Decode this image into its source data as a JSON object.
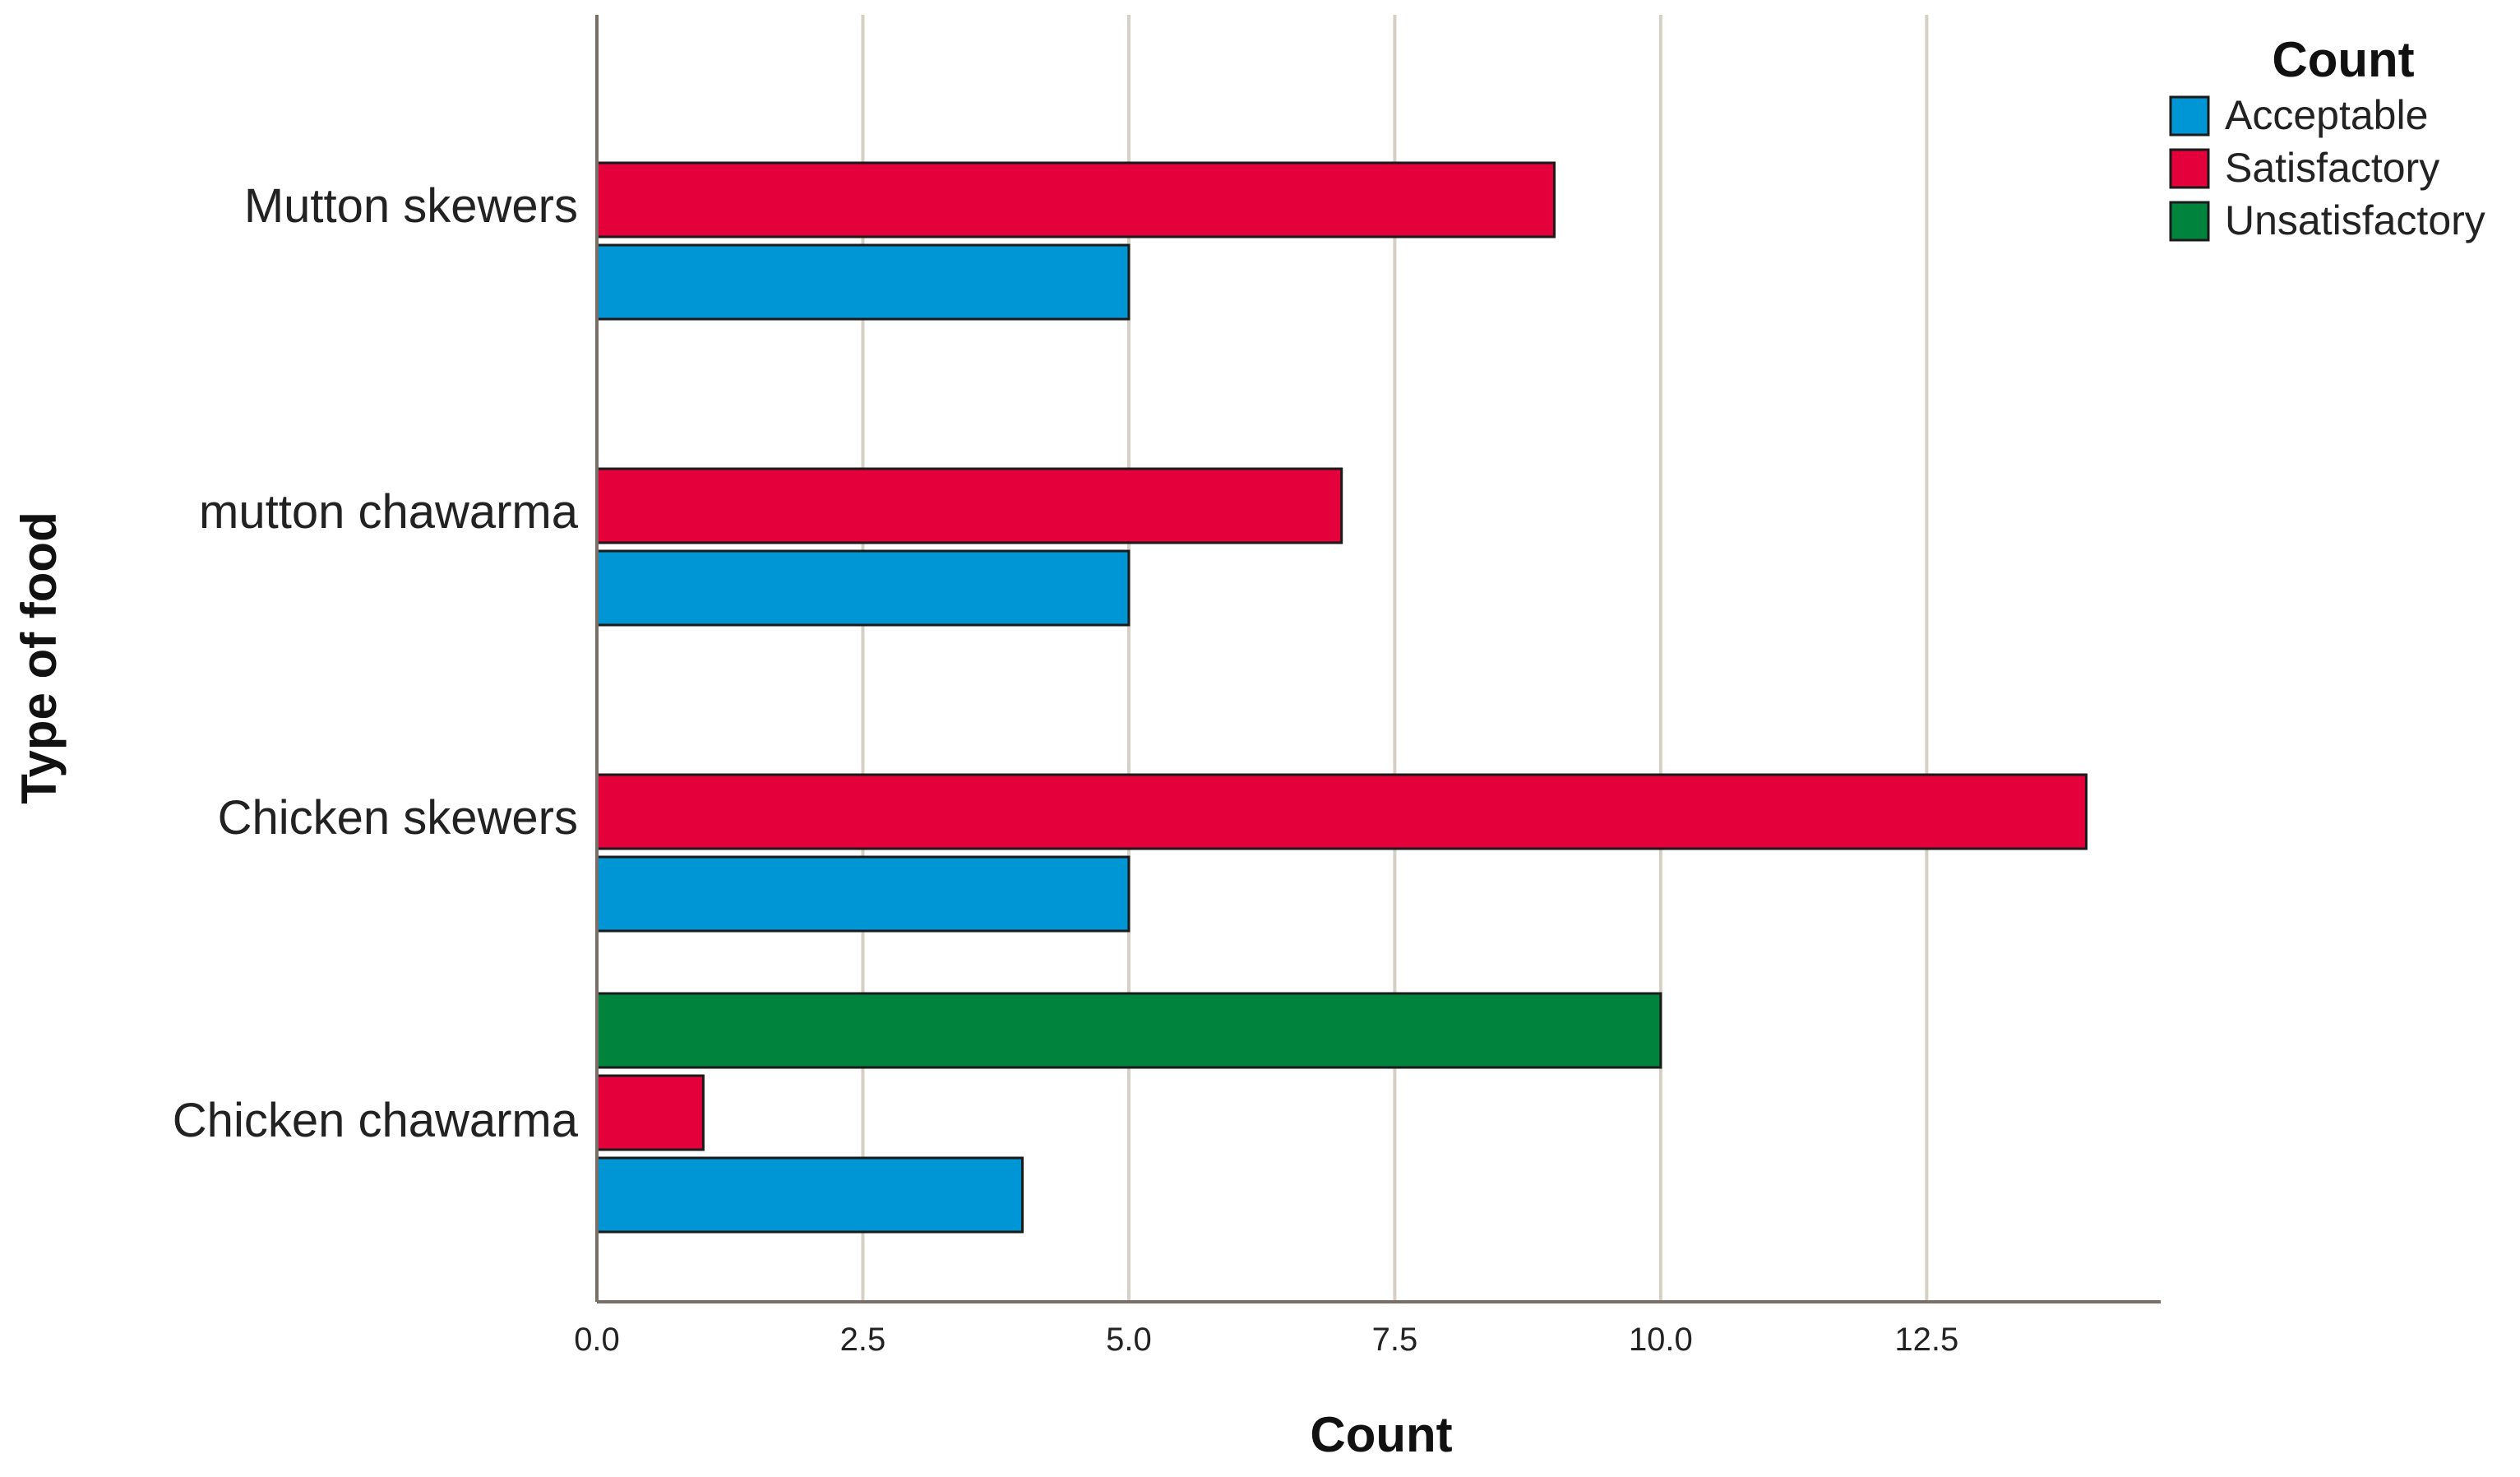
{
  "chart_data": {
    "type": "bar",
    "orientation": "horizontal",
    "categories": [
      "Mutton skewers",
      "mutton chawarma",
      "Chicken skewers",
      "Chicken chawarma"
    ],
    "series": [
      {
        "name": "Unsatisfactory",
        "color": "#00843d",
        "values": [
          0,
          0,
          0,
          10
        ]
      },
      {
        "name": "Satisfactory",
        "color": "#e4003b",
        "values": [
          9,
          7,
          14,
          1
        ]
      },
      {
        "name": "Acceptable",
        "color": "#0096d6",
        "values": [
          5,
          5,
          5,
          4
        ]
      }
    ],
    "xlabel": "Count",
    "ylabel": "Type of food",
    "xlim": [
      0,
      14.7
    ],
    "xticks": [
      "0.0",
      "2.5",
      "5.0",
      "7.5",
      "10.0",
      "12.5"
    ],
    "xtick_values": [
      0,
      2.5,
      5,
      7.5,
      10,
      12.5
    ],
    "grid": "vertical",
    "legend": {
      "title": "Count",
      "position": "top-right",
      "entries": [
        "Acceptable",
        "Satisfactory",
        "Unsatisfactory"
      ]
    }
  }
}
